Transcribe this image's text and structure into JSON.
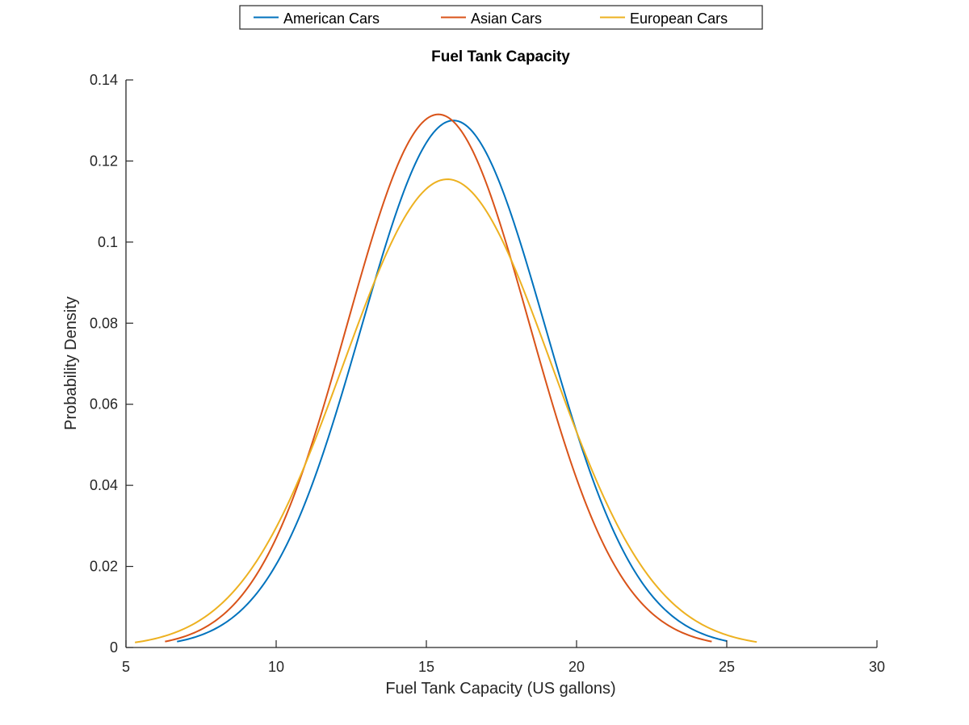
{
  "chart_data": {
    "type": "line",
    "title": "Fuel Tank Capacity",
    "xlabel": "Fuel Tank Capacity (US gallons)",
    "ylabel": "Probability Density",
    "xlim": [
      5,
      30
    ],
    "ylim": [
      0,
      0.14
    ],
    "xticks": [
      5,
      10,
      15,
      20,
      25,
      30
    ],
    "yticks": [
      0,
      0.02,
      0.04,
      0.06,
      0.08,
      0.1,
      0.12,
      0.14
    ],
    "xtick_labels": [
      "5",
      "10",
      "15",
      "20",
      "25",
      "30"
    ],
    "ytick_labels": [
      "0",
      "0.02",
      "0.04",
      "0.06",
      "0.08",
      "0.1",
      "0.12",
      "0.14"
    ],
    "grid": false,
    "legend_position": "top, outside, horizontal",
    "series": [
      {
        "name": "American Cars",
        "color": "#0072BD",
        "shape": "normal",
        "mean": 15.9,
        "peak": 0.13,
        "x_range": [
          6.7,
          25.0
        ],
        "points": [
          [
            6.7,
            0.0015
          ],
          [
            8,
            0.0055
          ],
          [
            10,
            0.02
          ],
          [
            12,
            0.0632
          ],
          [
            14,
            0.1075
          ],
          [
            15,
            0.1238
          ],
          [
            15.9,
            0.13
          ],
          [
            17,
            0.1223
          ],
          [
            18,
            0.0993
          ],
          [
            20,
            0.0526
          ],
          [
            22,
            0.0164
          ],
          [
            24,
            0.0037
          ],
          [
            25,
            0.0013
          ]
        ]
      },
      {
        "name": "Asian Cars",
        "color": "#D95319",
        "shape": "normal",
        "mean": 15.4,
        "peak": 0.1315,
        "x_range": [
          6.3,
          24.5
        ],
        "points": [
          [
            6.3,
            0.0015
          ],
          [
            8,
            0.008
          ],
          [
            10,
            0.0279
          ],
          [
            12,
            0.0736
          ],
          [
            14,
            0.1197
          ],
          [
            15.4,
            0.1315
          ],
          [
            17,
            0.1156
          ],
          [
            18,
            0.0926
          ],
          [
            20,
            0.0426
          ],
          [
            22,
            0.0118
          ],
          [
            24,
            0.002
          ],
          [
            24.5,
            0.0015
          ]
        ]
      },
      {
        "name": "European Cars",
        "color": "#EDB120",
        "shape": "normal",
        "mean": 15.7,
        "peak": 0.1155,
        "x_range": [
          5.3,
          26.0
        ],
        "points": [
          [
            5.3,
            0.0015
          ],
          [
            8,
            0.0082
          ],
          [
            10,
            0.0305
          ],
          [
            12,
            0.0713
          ],
          [
            14,
            0.1066
          ],
          [
            15.7,
            0.1155
          ],
          [
            17,
            0.1097
          ],
          [
            18,
            0.095
          ],
          [
            20,
            0.055
          ],
          [
            22,
            0.021
          ],
          [
            24,
            0.0054
          ],
          [
            26,
            0.0015
          ]
        ]
      }
    ]
  }
}
